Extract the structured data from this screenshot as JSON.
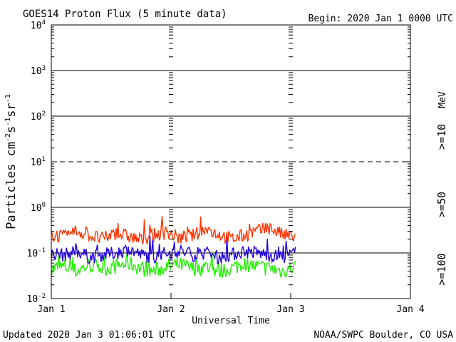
{
  "header": {
    "title": "GOES14 Proton Flux (5 minute data)",
    "begin": "Begin: 2020 Jan 1 0000 UTC"
  },
  "footer": {
    "updated": "Updated 2020 Jan  3 01:06:01 UTC",
    "credit": "NOAA/SWPC Boulder, CO USA"
  },
  "colors": {
    "ge10": "#ff3300",
    "ge50": "#2200dd",
    "ge100": "#22ee00",
    "axis": "#000000"
  },
  "chart_data": {
    "type": "line",
    "title": "GOES14 Proton Flux (5 minute data)",
    "xlabel": "Universal Time",
    "ylabel": "Particles cm-2s-1sr-1",
    "y_scale": "log",
    "ylim_exponents": [
      -2,
      4
    ],
    "y_ticks": [
      {
        "base": "10",
        "exp": "4"
      },
      {
        "base": "10",
        "exp": "3"
      },
      {
        "base": "10",
        "exp": "2"
      },
      {
        "base": "10",
        "exp": "1"
      },
      {
        "base": "10",
        "exp": "0"
      },
      {
        "base": "10",
        "exp": "-1"
      },
      {
        "base": "10",
        "exp": "-2"
      }
    ],
    "x_ticks": [
      "Jan 1",
      "Jan 2",
      "Jan 3",
      "Jan 4"
    ],
    "xlim_days": [
      0,
      3
    ],
    "data_end_day": 2.04,
    "right_labels": {
      "unit": "MeV",
      "ge10": ">=10",
      "ge50": ">=50",
      "ge100": ">=100"
    },
    "series": [
      {
        "name": ">=10",
        "color": "#ff3300",
        "x_start": 0,
        "x_end": 2.04,
        "values": [
          0.26,
          0.22,
          0.3,
          0.24,
          0.2,
          0.27,
          0.23,
          0.19,
          0.25,
          0.28,
          0.21,
          0.24,
          0.32,
          0.26,
          0.2,
          0.24,
          0.3,
          0.35,
          0.25,
          0.22
        ]
      },
      {
        "name": ">=50",
        "color": "#2200dd",
        "x_start": 0,
        "x_end": 2.04,
        "values": [
          0.1,
          0.09,
          0.11,
          0.08,
          0.09,
          0.1,
          0.12,
          0.09,
          0.08,
          0.1,
          0.11,
          0.09,
          0.1,
          0.08,
          0.09,
          0.11,
          0.1,
          0.09,
          0.08,
          0.1
        ]
      },
      {
        "name": ">=100",
        "color": "#22ee00",
        "x_start": 0,
        "x_end": 2.04,
        "values": [
          0.045,
          0.05,
          0.04,
          0.055,
          0.045,
          0.05,
          0.06,
          0.045,
          0.04,
          0.05,
          0.055,
          0.045,
          0.05,
          0.04,
          0.045,
          0.06,
          0.05,
          0.045,
          0.04,
          0.05
        ]
      }
    ]
  }
}
